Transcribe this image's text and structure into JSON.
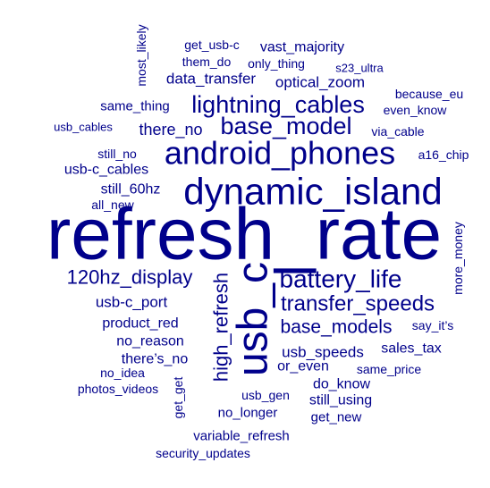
{
  "word_cloud": {
    "color": "#00008b",
    "words": [
      {
        "text": "refresh_rate"
      },
      {
        "text": "dynamic_island"
      },
      {
        "text": "usb_c"
      },
      {
        "text": "android_phones"
      },
      {
        "text": "lightning_cables"
      },
      {
        "text": "base_model"
      },
      {
        "text": "battery_life"
      },
      {
        "text": "transfer_speeds"
      },
      {
        "text": "120hz_display"
      },
      {
        "text": "high_refresh"
      },
      {
        "text": "base_models"
      },
      {
        "text": "usb_speeds"
      },
      {
        "text": "there_no"
      },
      {
        "text": "data_transfer"
      },
      {
        "text": "optical_zoom"
      },
      {
        "text": "usb-c_port"
      },
      {
        "text": "usb-c_cables"
      },
      {
        "text": "product_red"
      },
      {
        "text": "still_60hz"
      },
      {
        "text": "vast_majority"
      },
      {
        "text": "most_likely"
      },
      {
        "text": "same_thing"
      },
      {
        "text": "there’s_no"
      },
      {
        "text": "no_reason"
      },
      {
        "text": "more_money"
      },
      {
        "text": "sales_tax"
      },
      {
        "text": "get_get"
      },
      {
        "text": "or_even"
      },
      {
        "text": "do_know"
      },
      {
        "text": "still_using"
      },
      {
        "text": "no_longer"
      },
      {
        "text": "variable_refresh"
      },
      {
        "text": "get_usb-c"
      },
      {
        "text": "them_do"
      },
      {
        "text": "only_thing"
      },
      {
        "text": "s23_ultra"
      },
      {
        "text": "because_eu"
      },
      {
        "text": "even_know"
      },
      {
        "text": "usb_cables"
      },
      {
        "text": "via_cable"
      },
      {
        "text": "still_no"
      },
      {
        "text": "a16_chip"
      },
      {
        "text": "all_new"
      },
      {
        "text": "say_it’s"
      },
      {
        "text": "no_idea"
      },
      {
        "text": "same_price"
      },
      {
        "text": "photos_videos"
      },
      {
        "text": "usb_gen"
      },
      {
        "text": "get_new"
      },
      {
        "text": "security_updates"
      }
    ]
  }
}
